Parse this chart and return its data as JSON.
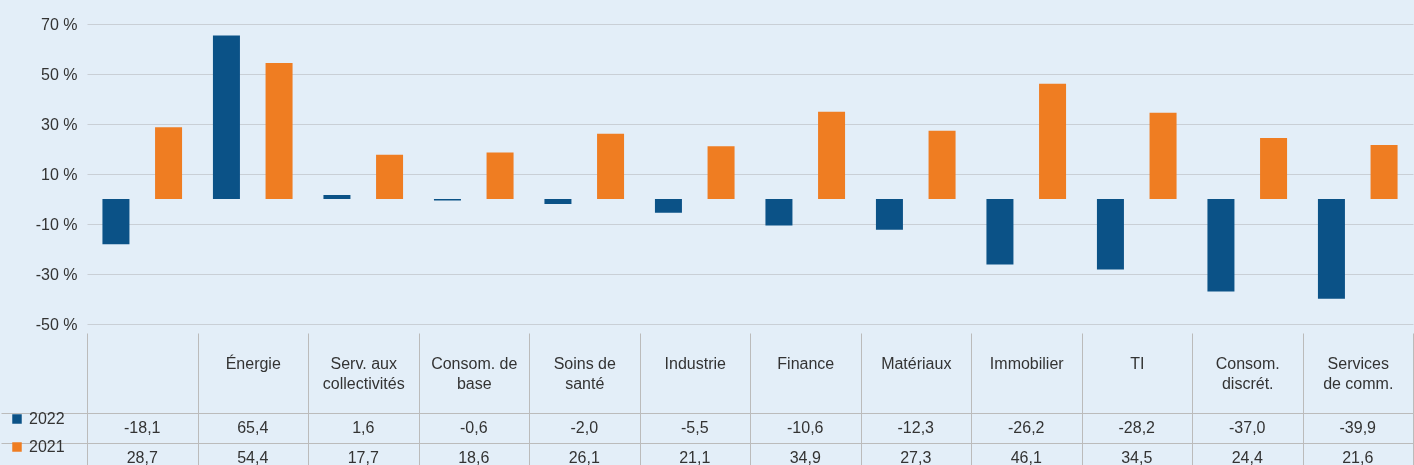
{
  "chart_data": {
    "type": "bar",
    "categories": [
      null,
      "Énergie",
      "Serv. aux collectivités",
      "Consom. de base",
      "Soins de santé",
      "Industrie",
      "Finance",
      "Matériaux",
      "Immobilier",
      "TI",
      "Consom. discrét.",
      "Services de comm."
    ],
    "series": [
      {
        "name": "2022",
        "color": "#0b5287",
        "values": [
          -18.1,
          65.4,
          1.6,
          -0.6,
          -2.0,
          -5.5,
          -10.6,
          -12.3,
          -26.2,
          -28.2,
          -37.0,
          -39.9
        ],
        "value_labels": [
          "-18,1",
          "65,4",
          "1,6",
          "-0,6",
          "-2,0",
          "-5,5",
          "-10,6",
          "-12,3",
          "-26,2",
          "-28,2",
          "-37,0",
          "-39,9"
        ]
      },
      {
        "name": "2021",
        "color": "#ef7d22",
        "values": [
          28.7,
          54.4,
          17.7,
          18.6,
          26.1,
          21.1,
          34.9,
          27.3,
          46.1,
          34.5,
          24.4,
          21.6
        ],
        "value_labels": [
          "28,7",
          "54,4",
          "17,7",
          "18,6",
          "26,1",
          "21,1",
          "34,9",
          "27,3",
          "46,1",
          "34,5",
          "24,4",
          "21,6"
        ]
      }
    ],
    "ylim": [
      -50,
      70
    ],
    "yticks": [
      {
        "value": -50,
        "label": "-50 %"
      },
      {
        "value": -30,
        "label": "-30 %"
      },
      {
        "value": -10,
        "label": "-10 %"
      },
      {
        "value": 10,
        "label": "10 %"
      },
      {
        "value": 30,
        "label": "30 %"
      },
      {
        "value": 50,
        "label": "50 %"
      },
      {
        "value": 70,
        "label": "70 %"
      }
    ],
    "grid": "y",
    "legend": "bottom left"
  }
}
